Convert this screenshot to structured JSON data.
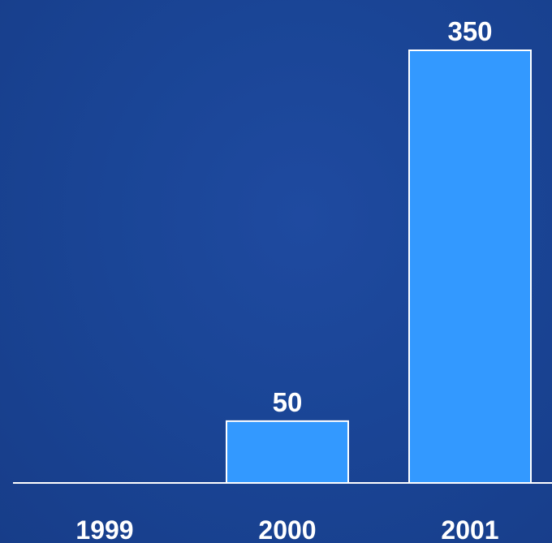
{
  "chart_data": {
    "type": "bar",
    "categories": [
      "1999",
      "2000",
      "2001"
    ],
    "values": [
      0,
      50,
      350
    ],
    "value_labels": [
      "",
      "50",
      "350"
    ],
    "title": "",
    "xlabel": "",
    "ylabel": "",
    "ylim": [
      0,
      350
    ],
    "grid": false,
    "legend": "none",
    "colors": {
      "bar_fill": "#3399ff",
      "bar_stroke": "#ffffff",
      "background": "#1a4596",
      "text": "#ffffff"
    }
  }
}
